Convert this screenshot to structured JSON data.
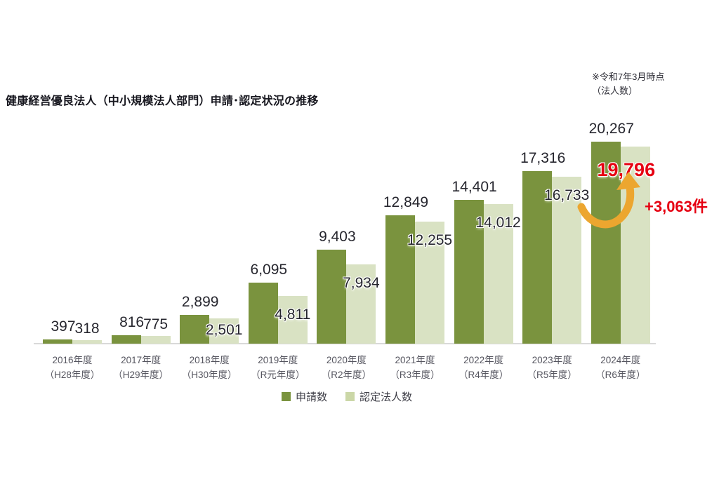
{
  "title": "健康経営優良法人（中小規模法人部門）申請･認定状況の推移",
  "note": {
    "line1": "※令和7年3月時点",
    "line2": "（法人数）"
  },
  "annotation": {
    "delta_label": "+3,063件",
    "highlight_value_label": "19,796"
  },
  "legend": [
    {
      "label": "申請数",
      "color": "#7a933e"
    },
    {
      "label": "認定法人数",
      "color": "#cbd7a7"
    }
  ],
  "colors": {
    "bar_dark": "#7a933e",
    "bar_light": "#d9e2c3",
    "highlight_red": "#e60012",
    "arrow_gold": "#eca62f",
    "axis_line": "#d9d9d9",
    "value_text": "#26262e",
    "category_text": "#55555f"
  },
  "chart_data": {
    "type": "bar",
    "title": "健康経営優良法人（中小規模法人部門）申請･認定状況の推移",
    "unit_note": "※令和7年3月時点（法人数）",
    "categories": [
      "2016年度",
      "2017年度",
      "2018年度",
      "2019年度",
      "2020年度",
      "2021年度",
      "2022年度",
      "2023年度",
      "2024年度"
    ],
    "categories_sub": [
      "（H28年度）",
      "（H29年度）",
      "（H30年度）",
      "（R元年度）",
      "（R2年度）",
      "（R3年度）",
      "（R4年度）",
      "（R5年度）",
      "（R6年度）"
    ],
    "series": [
      {
        "name": "申請数",
        "values": [
          397,
          816,
          2899,
          6095,
          9403,
          12849,
          14401,
          17316,
          20267
        ]
      },
      {
        "name": "認定法人数",
        "values": [
          318,
          775,
          2501,
          4811,
          7934,
          12255,
          14012,
          16733,
          19796
        ]
      }
    ],
    "highlight": {
      "series_index": 1,
      "category_index": 8,
      "color": "#e60012",
      "delta": "+3,063件"
    },
    "xlabel": "",
    "ylabel": "法人数",
    "ylim": [
      0,
      21000
    ],
    "grid": false,
    "legend_position": "bottom"
  }
}
